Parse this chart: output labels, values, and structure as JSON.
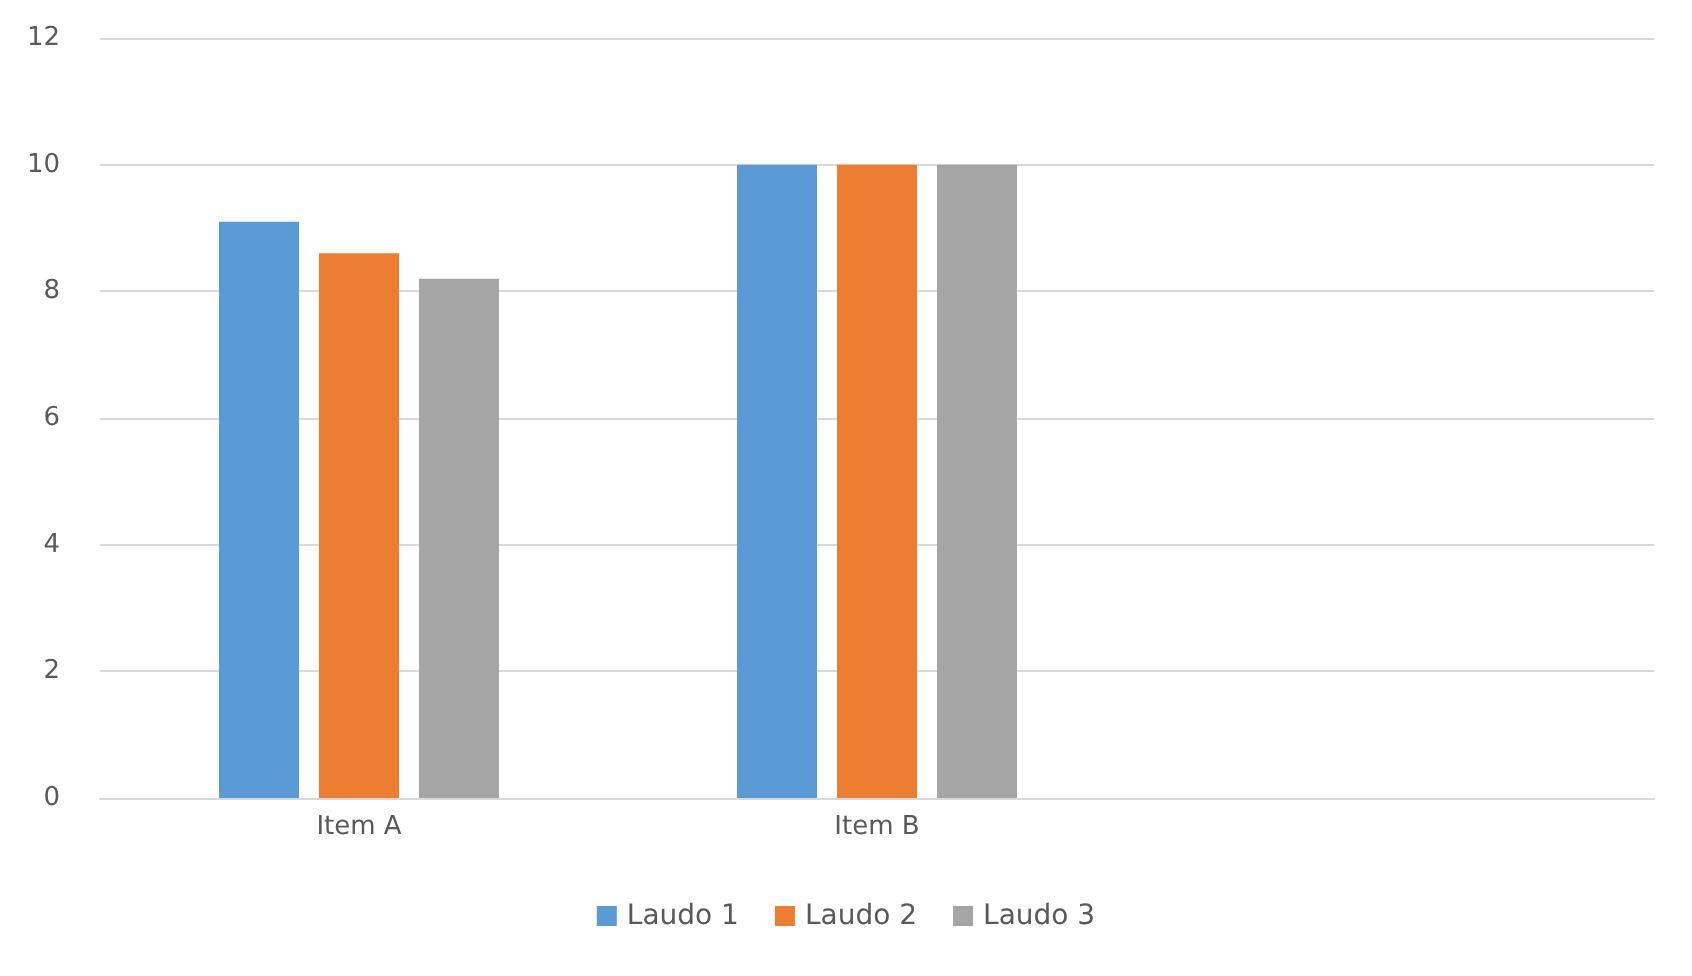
{
  "chart_data": {
    "type": "bar",
    "categories": [
      "Item A",
      "Item B",
      null
    ],
    "series": [
      {
        "name": "Laudo 1",
        "color": "#5b9bd5",
        "values": [
          9.1,
          10,
          null
        ]
      },
      {
        "name": "Laudo 2",
        "color": "#ed7d31",
        "values": [
          8.6,
          10,
          null
        ]
      },
      {
        "name": "Laudo 3",
        "color": "#a5a5a5",
        "values": [
          8.2,
          10,
          null
        ]
      }
    ],
    "ylim": [
      0,
      12
    ],
    "yticks": [
      0,
      2,
      4,
      6,
      8,
      10,
      12
    ],
    "grid": "y",
    "legend": "bottom"
  }
}
